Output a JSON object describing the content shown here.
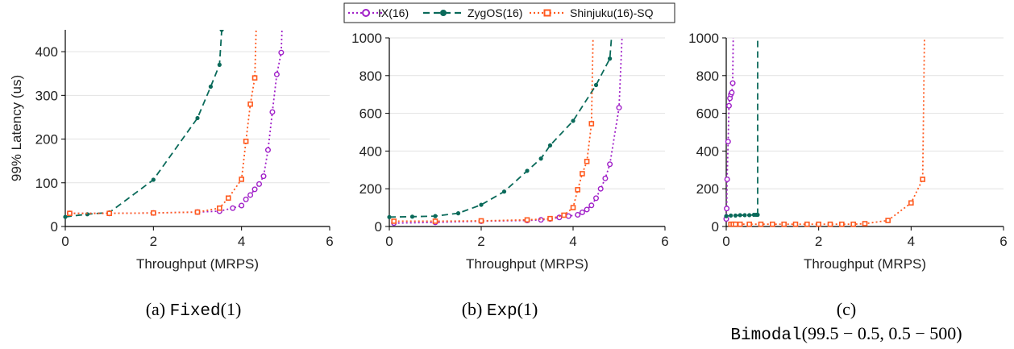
{
  "legend": {
    "entries": [
      {
        "name": "IX(16)",
        "color": "#a020c8",
        "marker": "open-circle",
        "dash": "dotted"
      },
      {
        "name": "ZygOS(16)",
        "color": "#0a6a5a",
        "marker": "filled-circle",
        "dash": "dashed"
      },
      {
        "name": "Shinjuku(16)-SQ",
        "color": "#ff5a1f",
        "marker": "open-square",
        "dash": "dotted"
      }
    ]
  },
  "captions": [
    {
      "label": "(a) ",
      "mono": "Fixed",
      "math": "(1)"
    },
    {
      "label": "(b) ",
      "mono": "Exp",
      "math": "(1)"
    },
    {
      "label": "(c)",
      "mono": "Bimodal",
      "math": "(99.5 − 0.5, 0.5 − 500)"
    }
  ],
  "chart_data": [
    {
      "type": "line",
      "title": "",
      "xlabel": "Throughput (MRPS)",
      "ylabel": "99% Latency (us)",
      "xlim": [
        0,
        6
      ],
      "ylim": [
        0,
        450
      ],
      "xticks": [
        0,
        2,
        4,
        6
      ],
      "yticks": [
        0,
        100,
        200,
        300,
        400
      ],
      "grid": "horizontal",
      "series": [
        {
          "name": "IX(16)",
          "x": [
            0.1,
            1.0,
            2.0,
            3.0,
            3.5,
            3.8,
            4.0,
            4.1,
            4.2,
            4.3,
            4.4,
            4.5,
            4.6,
            4.7,
            4.8,
            4.9,
            5.0
          ],
          "y": [
            30,
            30,
            31,
            33,
            35,
            42,
            48,
            62,
            72,
            85,
            97,
            115,
            175,
            262,
            348,
            398,
            700
          ]
        },
        {
          "name": "ZygOS(16)",
          "x": [
            0.0,
            0.5,
            1.0,
            2.0,
            3.0,
            3.3,
            3.5,
            3.55
          ],
          "y": [
            22,
            28,
            32,
            107,
            248,
            320,
            370,
            450
          ]
        },
        {
          "name": "Shinjuku(16)-SQ",
          "x": [
            0.1,
            1.0,
            2.0,
            3.0,
            3.5,
            3.7,
            4.0,
            4.1,
            4.2,
            4.3,
            4.4
          ],
          "y": [
            30,
            30,
            31,
            33,
            42,
            65,
            108,
            195,
            280,
            340,
            700
          ]
        }
      ]
    },
    {
      "type": "line",
      "title": "",
      "xlabel": "Throughput (MRPS)",
      "ylabel": "",
      "xlim": [
        0,
        6
      ],
      "ylim": [
        0,
        1000
      ],
      "xticks": [
        0,
        2,
        4,
        6
      ],
      "yticks": [
        0,
        200,
        400,
        600,
        800,
        1000
      ],
      "grid": "horizontal",
      "series": [
        {
          "name": "IX(16)",
          "x": [
            0.1,
            1.0,
            2.0,
            3.0,
            3.3,
            3.5,
            3.7,
            3.9,
            4.1,
            4.2,
            4.3,
            4.4,
            4.5,
            4.6,
            4.7,
            4.8,
            5.0,
            5.1
          ],
          "y": [
            18,
            22,
            28,
            32,
            35,
            40,
            48,
            55,
            62,
            75,
            90,
            112,
            150,
            200,
            255,
            330,
            630,
            1200
          ]
        },
        {
          "name": "ZygOS(16)",
          "x": [
            0.0,
            0.5,
            1.0,
            1.5,
            2.0,
            2.5,
            3.0,
            3.3,
            3.5,
            4.0,
            4.5,
            4.8,
            4.9
          ],
          "y": [
            50,
            52,
            55,
            70,
            115,
            185,
            295,
            360,
            430,
            560,
            750,
            890,
            1200
          ]
        },
        {
          "name": "Shinjuku(16)-SQ",
          "x": [
            0.1,
            1.0,
            2.0,
            3.0,
            3.5,
            3.8,
            4.0,
            4.1,
            4.2,
            4.3,
            4.4,
            4.45
          ],
          "y": [
            28,
            28,
            30,
            35,
            42,
            60,
            100,
            195,
            280,
            345,
            545,
            1200
          ]
        }
      ]
    },
    {
      "type": "line",
      "title": "",
      "xlabel": "Throughput (MRPS)",
      "ylabel": "",
      "xlim": [
        0,
        6
      ],
      "ylim": [
        0,
        1000
      ],
      "xticks": [
        0,
        2,
        4,
        6
      ],
      "yticks": [
        0,
        200,
        400,
        600,
        800,
        1000
      ],
      "grid": "horizontal",
      "series": [
        {
          "name": "IX(16)",
          "x": [
            0.0,
            0.01,
            0.02,
            0.04,
            0.06,
            0.08,
            0.1,
            0.12,
            0.14,
            0.16
          ],
          "y": [
            40,
            95,
            250,
            450,
            640,
            680,
            700,
            710,
            760,
            1200
          ]
        },
        {
          "name": "ZygOS(16)",
          "x": [
            0.0,
            0.1,
            0.2,
            0.3,
            0.4,
            0.5,
            0.6,
            0.65,
            0.68,
            0.68
          ],
          "y": [
            55,
            58,
            58,
            60,
            60,
            60,
            62,
            62,
            62,
            1200
          ]
        },
        {
          "name": "Shinjuku(16)-SQ",
          "x": [
            0.1,
            0.15,
            0.2,
            0.3,
            0.5,
            0.75,
            1.0,
            1.25,
            1.5,
            1.75,
            2.0,
            2.25,
            2.5,
            2.75,
            3.0,
            3.5,
            4.0,
            4.25,
            4.3
          ],
          "y": [
            12,
            12,
            12,
            12,
            12,
            12,
            12,
            12,
            12,
            12,
            12,
            12,
            12,
            12,
            15,
            32,
            125,
            250,
            1200
          ]
        }
      ]
    }
  ]
}
